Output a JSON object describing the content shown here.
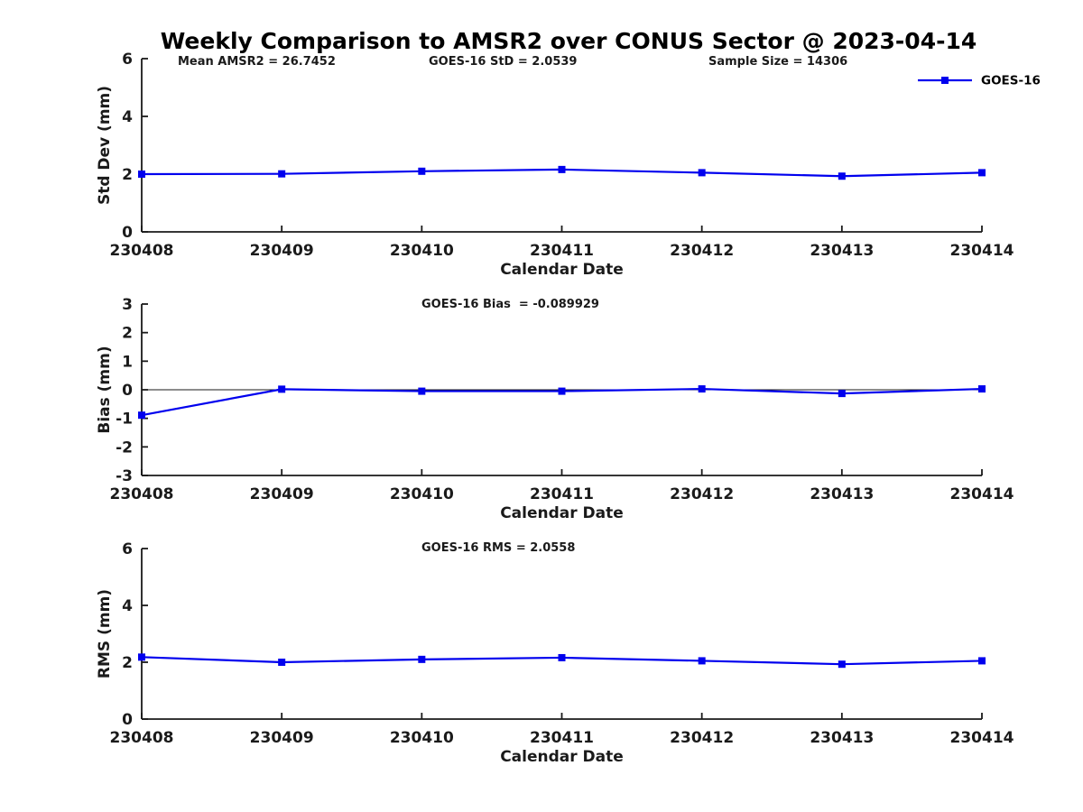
{
  "title": "Weekly Comparison to AMSR2 over CONUS Sector @ 2023-04-14",
  "colors": {
    "line": "#0000ee",
    "axis": "#1a1a1a",
    "text": "#1a1a1a",
    "title": "#000000",
    "background": "#ffffff"
  },
  "legend": {
    "label": "GOES-16"
  },
  "chart_data": [
    {
      "type": "line",
      "id": "std-dev-subplot",
      "annotations": [
        "Mean AMSR2 = 26.7452",
        "GOES-16 StD = 2.0539",
        "Sample Size = 14306"
      ],
      "categories": [
        "230408",
        "230409",
        "230410",
        "230411",
        "230412",
        "230413",
        "230414"
      ],
      "series": [
        {
          "name": "GOES-16",
          "values": [
            2.0,
            2.01,
            2.1,
            2.16,
            2.05,
            1.93,
            2.05
          ]
        }
      ],
      "xlabel": "Calendar Date",
      "ylabel": "Std Dev (mm)",
      "ylim": [
        0,
        6
      ],
      "yticks": [
        0,
        2,
        4,
        6
      ],
      "zero_line": false,
      "legend_visible": true,
      "grid": false,
      "legend_position": "top-right"
    },
    {
      "type": "line",
      "id": "bias-subplot",
      "annotations": [
        "GOES-16 Bias  = -0.089929"
      ],
      "categories": [
        "230408",
        "230409",
        "230410",
        "230411",
        "230412",
        "230413",
        "230414"
      ],
      "series": [
        {
          "name": "GOES-16",
          "values": [
            -0.89,
            0.02,
            -0.05,
            -0.05,
            0.03,
            -0.13,
            0.03
          ]
        }
      ],
      "xlabel": "Calendar Date",
      "ylabel": "Bias (mm)",
      "ylim": [
        -3,
        3
      ],
      "yticks": [
        -3,
        -2,
        -1,
        0,
        1,
        2,
        3
      ],
      "zero_line": true,
      "legend_visible": false,
      "grid": false
    },
    {
      "type": "line",
      "id": "rms-subplot",
      "annotations": [
        "GOES-16 RMS = 2.0558"
      ],
      "categories": [
        "230408",
        "230409",
        "230410",
        "230411",
        "230412",
        "230413",
        "230414"
      ],
      "series": [
        {
          "name": "GOES-16",
          "values": [
            2.18,
            2.0,
            2.1,
            2.16,
            2.05,
            1.93,
            2.05
          ]
        }
      ],
      "xlabel": "Calendar Date",
      "ylabel": "RMS (mm)",
      "ylim": [
        0,
        6
      ],
      "yticks": [
        0,
        2,
        4,
        6
      ],
      "zero_line": false,
      "legend_visible": false,
      "grid": false
    }
  ]
}
